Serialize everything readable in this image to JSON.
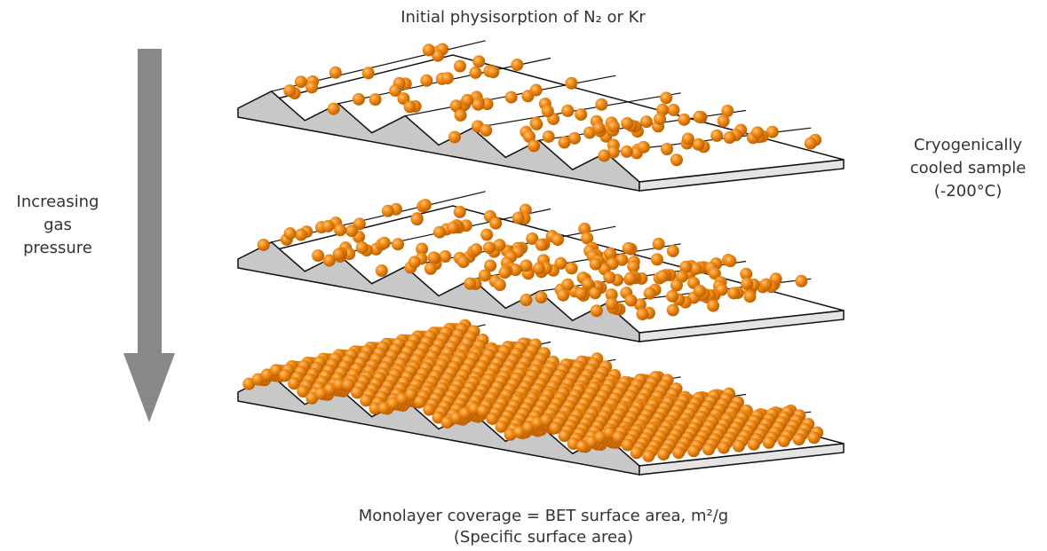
{
  "title": "Initial physisorption of N₂ or Kr",
  "left_label": [
    "Increasing",
    "gas",
    "pressure"
  ],
  "right_label": [
    "Cryogenically",
    "cooled sample",
    "(-200°C)"
  ],
  "caption": [
    "Monolayer coverage = BET surface area, m²/g",
    "(Specific surface area)"
  ]
}
